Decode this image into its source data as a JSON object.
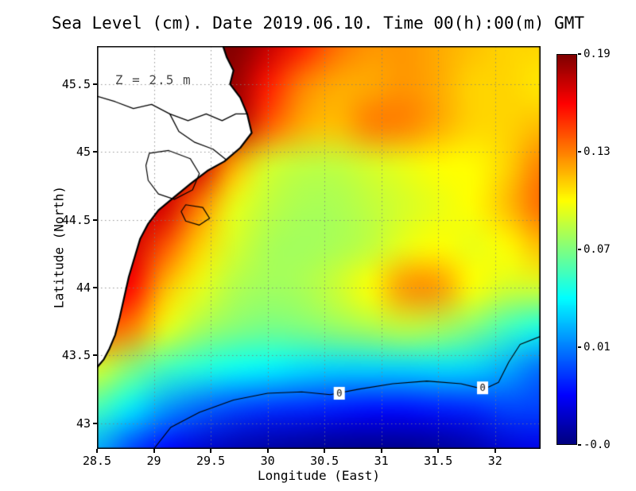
{
  "figure": {
    "title": "Sea Level (cm). Date 2019.06.10. Time 00(h):00(m) GMT",
    "annotation": "Z = 2.5 m"
  },
  "chart_data": {
    "type": "heatmap",
    "title": "Sea Level (cm). Date 2019.06.10. Time 00(h):00(m) GMT",
    "annotation": {
      "text": "Z = 2.5 m",
      "lon": 28.66,
      "lat": 45.53
    },
    "xlabel": "Longitude (East)",
    "ylabel": "Latitude (North)",
    "xlim": [
      28.5,
      32.4
    ],
    "ylim": [
      42.81,
      45.78
    ],
    "x_ticks": [
      28.5,
      29,
      29.5,
      30,
      30.5,
      31,
      31.5,
      32
    ],
    "x_tick_labels": [
      "28.5",
      "29",
      "29.5",
      "30",
      "30.5",
      "31",
      "31.5",
      "32"
    ],
    "y_ticks": [
      43,
      43.5,
      44,
      44.5,
      45,
      45.5
    ],
    "y_tick_labels": [
      "43",
      "43.5",
      "44",
      "44.5",
      "45",
      "45.5"
    ],
    "grid": true,
    "colormap": "jet",
    "vmin": -0.05,
    "vmax": 0.19,
    "colorbar_tick_labels": [
      "0.19",
      "0.13",
      "0.07",
      "0.01",
      "-0.0"
    ],
    "lon": [
      28.5,
      28.8,
      29.1,
      29.4,
      29.7,
      30.0,
      30.3,
      30.6,
      30.9,
      31.2,
      31.5,
      31.8,
      32.1,
      32.4
    ],
    "lat": [
      45.8,
      45.5,
      45.2,
      44.9,
      44.6,
      44.3,
      44.0,
      43.7,
      43.4,
      43.1,
      42.8
    ],
    "values": [
      [
        0.18,
        0.18,
        0.18,
        0.185,
        0.19,
        0.175,
        0.155,
        0.135,
        0.125,
        0.125,
        0.12,
        0.115,
        0.11,
        0.11
      ],
      [
        0.17,
        0.17,
        0.17,
        0.18,
        0.185,
        0.155,
        0.13,
        0.12,
        0.12,
        0.125,
        0.12,
        0.11,
        0.11,
        0.105
      ],
      [
        0.16,
        0.16,
        0.16,
        0.17,
        0.18,
        0.14,
        0.12,
        0.115,
        0.13,
        0.13,
        0.12,
        0.11,
        0.11,
        0.115
      ],
      [
        0.17,
        0.17,
        0.17,
        0.17,
        0.12,
        0.09,
        0.085,
        0.085,
        0.09,
        0.095,
        0.1,
        0.1,
        0.11,
        0.13
      ],
      [
        0.17,
        0.17,
        0.17,
        0.13,
        0.095,
        0.085,
        0.08,
        0.08,
        0.085,
        0.09,
        0.095,
        0.1,
        0.115,
        0.135
      ],
      [
        0.17,
        0.17,
        0.14,
        0.11,
        0.09,
        0.08,
        0.078,
        0.08,
        0.085,
        0.095,
        0.1,
        0.095,
        0.1,
        0.115
      ],
      [
        0.16,
        0.16,
        0.115,
        0.095,
        0.082,
        0.078,
        0.08,
        0.088,
        0.1,
        0.125,
        0.125,
        0.1,
        0.09,
        0.09
      ],
      [
        0.14,
        0.13,
        0.095,
        0.08,
        0.072,
        0.068,
        0.07,
        0.075,
        0.08,
        0.085,
        0.08,
        0.07,
        0.055,
        0.045
      ],
      [
        0.09,
        0.07,
        0.055,
        0.048,
        0.042,
        0.038,
        0.033,
        0.03,
        0.03,
        0.03,
        0.032,
        0.03,
        0.02,
        0.005
      ],
      [
        0.055,
        0.035,
        0.015,
        0.003,
        -0.005,
        -0.01,
        -0.012,
        -0.015,
        -0.018,
        -0.018,
        -0.015,
        -0.012,
        -0.005,
        -0.005
      ],
      [
        0.02,
        -0.005,
        -0.02,
        -0.03,
        -0.038,
        -0.042,
        -0.045,
        -0.047,
        -0.048,
        -0.048,
        -0.045,
        -0.04,
        -0.03,
        -0.025
      ]
    ],
    "zero_contour": {
      "label": "0",
      "points": [
        [
          29.0,
          42.81
        ],
        [
          29.15,
          42.97
        ],
        [
          29.4,
          43.08
        ],
        [
          29.7,
          43.17
        ],
        [
          30.0,
          43.22
        ],
        [
          30.3,
          43.23
        ],
        [
          30.55,
          43.21
        ],
        [
          30.8,
          43.25
        ],
        [
          31.1,
          43.29
        ],
        [
          31.4,
          43.31
        ],
        [
          31.7,
          43.29
        ],
        [
          31.9,
          43.25
        ],
        [
          32.03,
          43.3
        ],
        [
          32.12,
          43.45
        ],
        [
          32.22,
          43.58
        ],
        [
          32.4,
          43.64
        ]
      ],
      "label_points": [
        [
          30.63,
          43.22
        ],
        [
          31.89,
          43.26
        ]
      ]
    },
    "coastline": [
      [
        29.6,
        45.8
      ],
      [
        29.64,
        45.7
      ],
      [
        29.7,
        45.6
      ],
      [
        29.67,
        45.5
      ],
      [
        29.76,
        45.4
      ],
      [
        29.82,
        45.28
      ],
      [
        29.86,
        45.14
      ],
      [
        29.76,
        45.03
      ],
      [
        29.62,
        44.93
      ],
      [
        29.47,
        44.86
      ],
      [
        29.33,
        44.77
      ],
      [
        29.17,
        44.66
      ],
      [
        29.04,
        44.57
      ],
      [
        28.95,
        44.47
      ],
      [
        28.88,
        44.36
      ],
      [
        28.83,
        44.22
      ],
      [
        28.78,
        44.08
      ],
      [
        28.74,
        43.93
      ],
      [
        28.7,
        43.78
      ],
      [
        28.66,
        43.65
      ],
      [
        28.61,
        43.55
      ],
      [
        28.56,
        43.47
      ],
      [
        28.5,
        43.41
      ]
    ],
    "rivers": [
      [
        [
          28.5,
          45.41
        ],
        [
          28.66,
          45.37
        ],
        [
          28.82,
          45.32
        ],
        [
          28.98,
          45.35
        ],
        [
          29.14,
          45.28
        ],
        [
          29.3,
          45.23
        ],
        [
          29.46,
          45.28
        ],
        [
          29.6,
          45.23
        ],
        [
          29.72,
          45.28
        ],
        [
          29.82,
          45.28
        ]
      ],
      [
        [
          29.14,
          45.28
        ],
        [
          29.22,
          45.15
        ],
        [
          29.36,
          45.07
        ],
        [
          29.52,
          45.02
        ],
        [
          29.64,
          44.94
        ]
      ]
    ],
    "lakes": [
      [
        [
          28.96,
          44.99
        ],
        [
          29.13,
          45.01
        ],
        [
          29.32,
          44.95
        ],
        [
          29.4,
          44.84
        ],
        [
          29.34,
          44.72
        ],
        [
          29.18,
          44.65
        ],
        [
          29.04,
          44.69
        ],
        [
          28.95,
          44.79
        ],
        [
          28.93,
          44.9
        ]
      ],
      [
        [
          29.28,
          44.61
        ],
        [
          29.43,
          44.59
        ],
        [
          29.49,
          44.51
        ],
        [
          29.4,
          44.46
        ],
        [
          29.28,
          44.49
        ],
        [
          29.24,
          44.56
        ]
      ]
    ]
  }
}
